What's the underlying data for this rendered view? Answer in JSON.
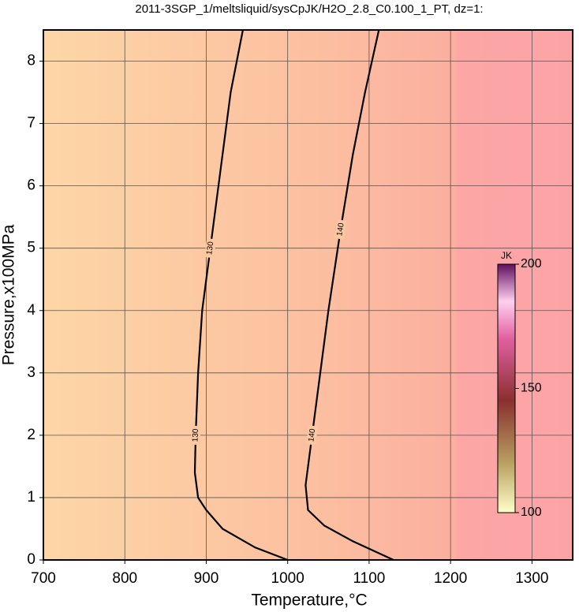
{
  "chart_data": {
    "type": "contour",
    "title": "2011-3SGP_1/meltsliquid/sysCpJK/H2O_2.8_C0.100_1_PT, dz=1:",
    "x_label": "Temperature,°C",
    "y_label": "Pressure,x100MPa",
    "xlim": [
      700,
      1350
    ],
    "ylim": [
      0,
      8.5
    ],
    "xticks": [
      700,
      800,
      900,
      1000,
      1100,
      1200,
      1300
    ],
    "yticks": [
      0,
      1,
      2,
      3,
      4,
      5,
      6,
      7,
      8
    ],
    "grid": true,
    "contours": [
      {
        "level": 130,
        "color": "#000000",
        "x": [
          945,
          930,
          915,
          905,
          895,
          890,
          887,
          886,
          890,
          900,
          920,
          960,
          1000
        ],
        "y": [
          8.5,
          7.5,
          6,
          5,
          4,
          3,
          2,
          1.4,
          1,
          0.8,
          0.5,
          0.2,
          0
        ]
      },
      {
        "level": 140,
        "color": "#000000",
        "x": [
          1112,
          1095,
          1080,
          1065,
          1050,
          1040,
          1030,
          1022,
          1025,
          1045,
          1080,
          1130
        ],
        "y": [
          8.5,
          7.5,
          6.5,
          5.3,
          4,
          3,
          2,
          1.2,
          0.8,
          0.55,
          0.3,
          0
        ]
      }
    ],
    "colorbar": {
      "label": "JK",
      "clim": [
        100,
        200
      ],
      "ticks": [
        100,
        150,
        200
      ]
    }
  }
}
